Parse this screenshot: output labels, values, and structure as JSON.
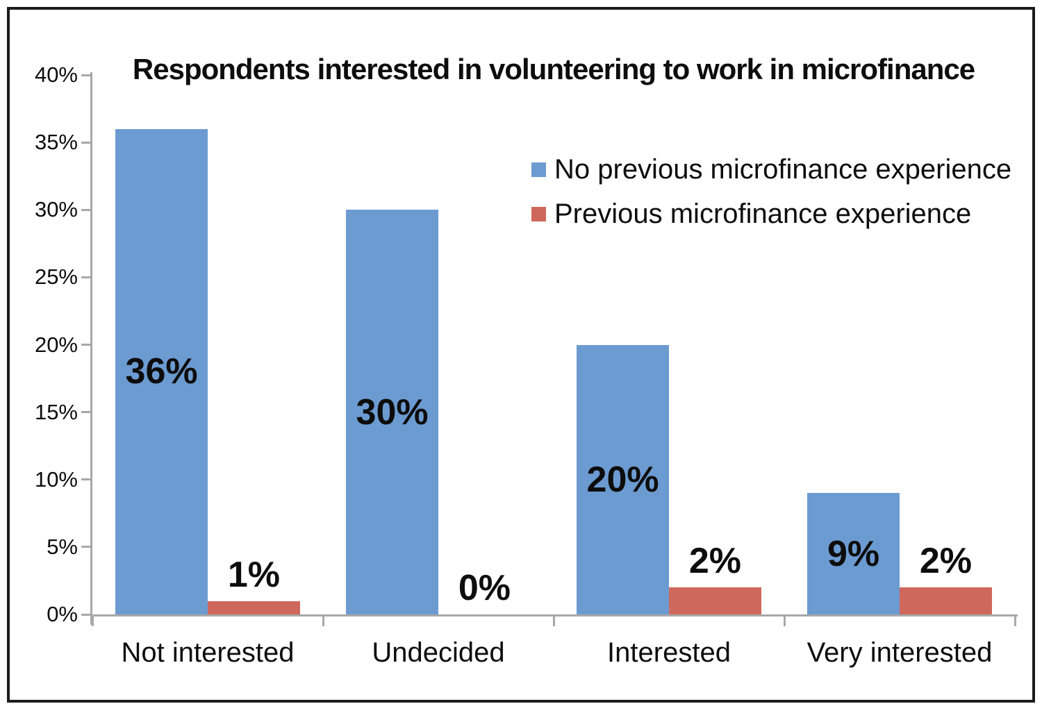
{
  "chart_data": {
    "type": "bar",
    "title": "Respondents interested in volunteering to work in microfinance",
    "categories": [
      "Not interested",
      "Undecided",
      "Interested",
      "Very interested"
    ],
    "series": [
      {
        "name": "No previous microfinance experience",
        "color": "#6c9bd1",
        "values": [
          36,
          30,
          20,
          9
        ],
        "data_labels": [
          "36%",
          "30%",
          "20%",
          "9%"
        ],
        "label_placement": "inside-center"
      },
      {
        "name": "Previous microfinance experience",
        "color": "#cf685c",
        "values": [
          1,
          0,
          2,
          2
        ],
        "data_labels": [
          "1%",
          "0%",
          "2%",
          "2%"
        ],
        "label_placement": "above"
      }
    ],
    "xlabel": "",
    "ylabel": "",
    "ylim": [
      0,
      40
    ],
    "ytick_step": 5,
    "ytick_labels": [
      "0%",
      "5%",
      "10%",
      "15%",
      "20%",
      "25%",
      "30%",
      "35%",
      "40%"
    ],
    "grid": false,
    "legend_position": "upper-right-inside",
    "axis_color": "#a8a8a8",
    "text_color": "#0d0d0d",
    "background_color": "#ffffff",
    "frame_color": "#1c1c1c"
  }
}
